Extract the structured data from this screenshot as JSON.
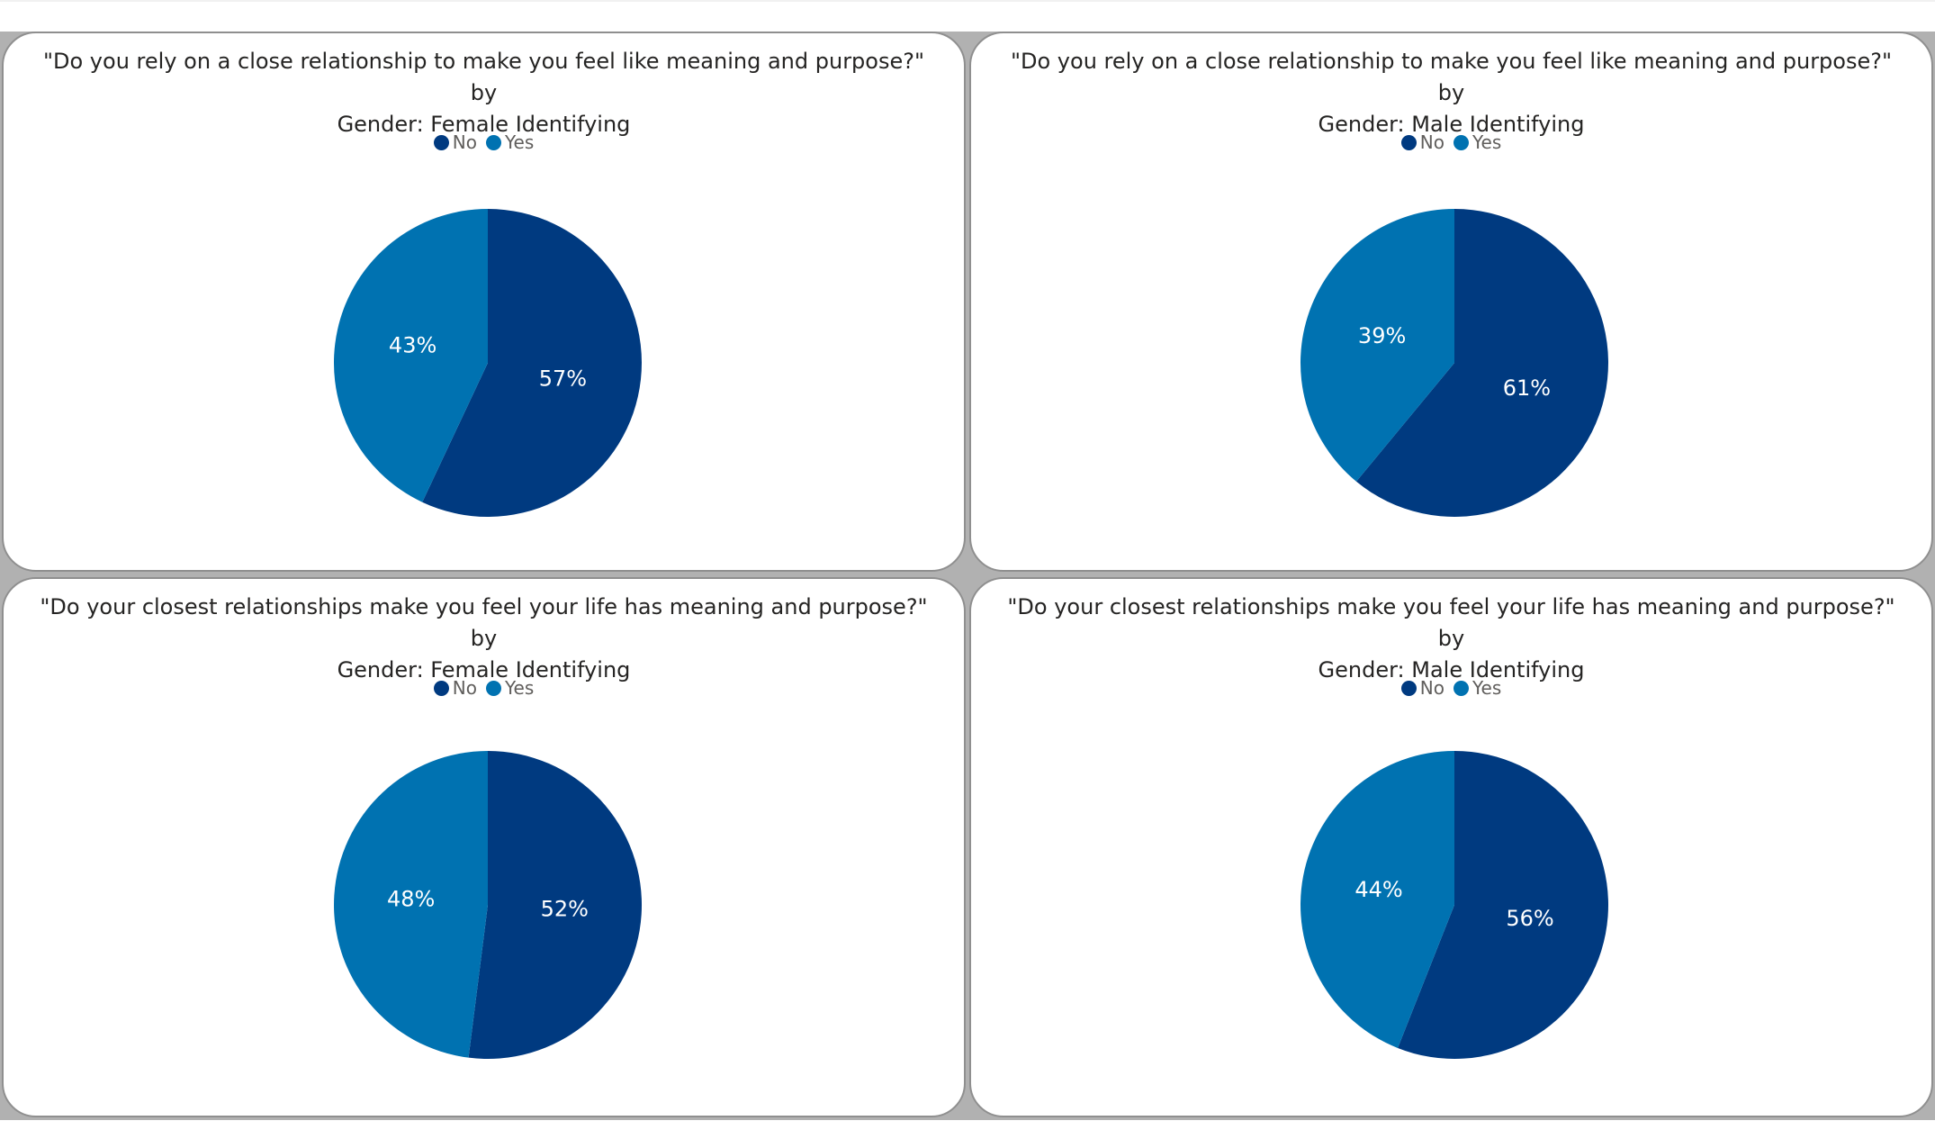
{
  "colors": {
    "no": "#003a80",
    "yes": "#0072b1"
  },
  "legend": {
    "no_label": "No",
    "yes_label": "Yes"
  },
  "charts": [
    {
      "title_line1": "\"Do you rely on a close relationship to make you feel like meaning and purpose?\" by",
      "title_line2": "Gender: Female Identifying",
      "no_label": "57%",
      "yes_label": "43%"
    },
    {
      "title_line1": "\"Do you rely on a close relationship to make you feel like meaning and purpose?\" by",
      "title_line2": "Gender: Male Identifying",
      "no_label": "61%",
      "yes_label": "39%"
    },
    {
      "title_line1": "\"Do your closest relationships make you feel your life has meaning and purpose?\" by",
      "title_line2": "Gender: Female Identifying",
      "no_label": "52%",
      "yes_label": "48%"
    },
    {
      "title_line1": "\"Do your closest relationships make you feel your life has meaning and purpose?\" by",
      "title_line2": "Gender: Male Identifying",
      "no_label": "56%",
      "yes_label": "44%"
    }
  ],
  "chart_data": [
    {
      "type": "pie",
      "title": "\"Do you rely on a close relationship to make you feel like meaning and purpose?\" by Gender: Female Identifying",
      "categories": [
        "No",
        "Yes"
      ],
      "values": [
        57,
        43
      ],
      "legend": "top-center"
    },
    {
      "type": "pie",
      "title": "\"Do you rely on a close relationship to make you feel like meaning and purpose?\" by Gender: Male Identifying",
      "categories": [
        "No",
        "Yes"
      ],
      "values": [
        61,
        39
      ],
      "legend": "top-center"
    },
    {
      "type": "pie",
      "title": "\"Do your closest relationships make you feel your life has meaning and purpose?\" by Gender: Female Identifying",
      "categories": [
        "No",
        "Yes"
      ],
      "values": [
        52,
        48
      ],
      "legend": "top-center"
    },
    {
      "type": "pie",
      "title": "\"Do your closest relationships make you feel your life has meaning and purpose?\" by Gender: Male Identifying",
      "categories": [
        "No",
        "Yes"
      ],
      "values": [
        56,
        44
      ],
      "legend": "top-center"
    }
  ]
}
